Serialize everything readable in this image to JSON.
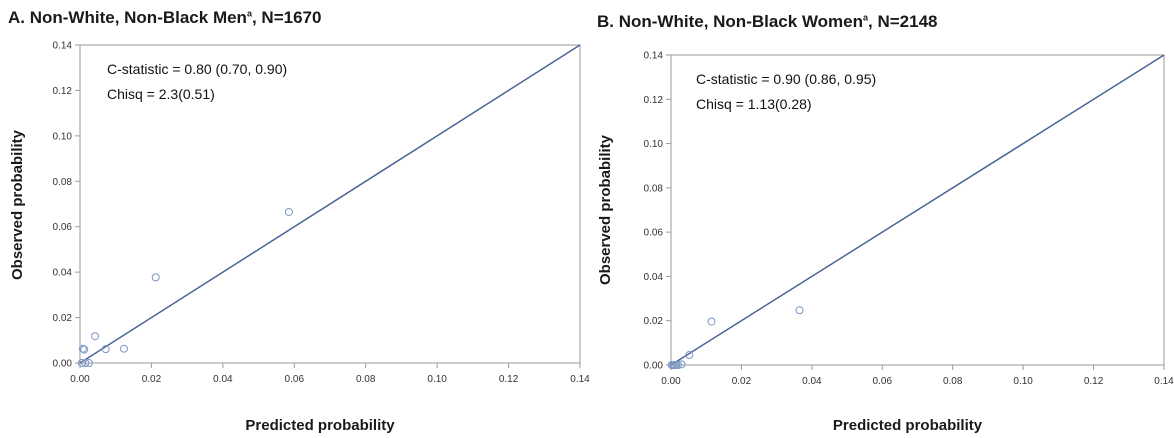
{
  "colors": {
    "frame": "#9a9a9a",
    "reference_line": "#4a6596",
    "marker": "#7b96c6"
  },
  "chart_data": [
    {
      "type": "scatter",
      "title": "A. Non-White, Non-Black Men",
      "title_superscript": "a",
      "title_suffix": ", N=1670",
      "xlabel": "Predicted probability",
      "ylabel": "Observed probability",
      "xlim": [
        0,
        0.14
      ],
      "ylim": [
        0,
        0.14
      ],
      "xticks": [
        "0.00",
        "0.02",
        "0.04",
        "0.06",
        "0.08",
        "0.10",
        "0.12",
        "0.14"
      ],
      "yticks": [
        "0.00",
        "0.02",
        "0.04",
        "0.06",
        "0.08",
        "0.10",
        "0.12",
        "0.14"
      ],
      "reference_line": "y = x",
      "annotations": [
        "C-statistic = 0.80 (0.70, 0.90)",
        "Chisq = 2.3(0.51)"
      ],
      "points": [
        {
          "x": 0.0008,
          "y": 0.0063
        },
        {
          "x": 0.0012,
          "y": 0.0059
        },
        {
          "x": 0.0005,
          "y": 0.0
        },
        {
          "x": 0.0015,
          "y": 0.0
        },
        {
          "x": 0.0025,
          "y": 0.0
        },
        {
          "x": 0.0042,
          "y": 0.0118
        },
        {
          "x": 0.0072,
          "y": 0.0061
        },
        {
          "x": 0.0123,
          "y": 0.0063
        },
        {
          "x": 0.0212,
          "y": 0.0377
        },
        {
          "x": 0.0585,
          "y": 0.0665
        }
      ]
    },
    {
      "type": "scatter",
      "title": "B. Non-White, Non-Black Women",
      "title_superscript": "a",
      "title_suffix": ", N=2148",
      "xlabel": "Predicted probability",
      "ylabel": "Observed probability",
      "xlim": [
        0,
        0.14
      ],
      "ylim": [
        0,
        0.14
      ],
      "xticks": [
        "0.00",
        "0.02",
        "0.04",
        "0.06",
        "0.08",
        "0.10",
        "0.12",
        "0.14"
      ],
      "yticks": [
        "0.00",
        "0.02",
        "0.04",
        "0.06",
        "0.08",
        "0.10",
        "0.12",
        "0.14"
      ],
      "reference_line": "y = x",
      "annotations": [
        "C-statistic = 0.90 (0.86, 0.95)",
        "Chisq = 1.13(0.28)"
      ],
      "points": [
        {
          "x": 0.0002,
          "y": 0.0
        },
        {
          "x": 0.0006,
          "y": 0.0
        },
        {
          "x": 0.001,
          "y": 0.0
        },
        {
          "x": 0.0015,
          "y": 0.0
        },
        {
          "x": 0.002,
          "y": 0.0
        },
        {
          "x": 0.003,
          "y": 0.0003
        },
        {
          "x": 0.0052,
          "y": 0.0045
        },
        {
          "x": 0.0115,
          "y": 0.0196
        },
        {
          "x": 0.0365,
          "y": 0.0247
        }
      ]
    }
  ]
}
